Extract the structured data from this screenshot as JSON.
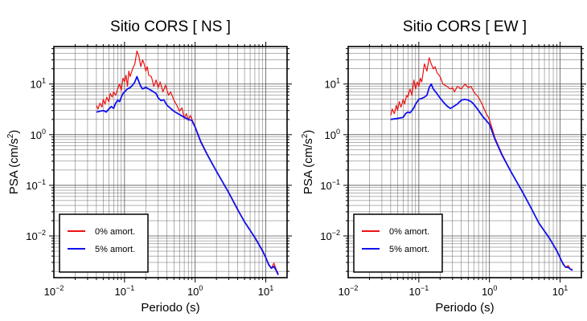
{
  "colors": {
    "series_0": "#ee1111",
    "series_5": "#1111ee",
    "grid": "#555555",
    "axis": "#000000"
  },
  "chart_data": [
    {
      "type": "line",
      "title": "Sitio CORS [ NS ]",
      "xlabel": "Periodo (s)",
      "ylabel_main": "PSA (cm/s",
      "ylabel_sup": "2",
      "ylabel_tail": ")",
      "xscale": "log",
      "yscale": "log",
      "xlim": [
        0.01,
        20
      ],
      "ylim": [
        0.0015,
        55
      ],
      "grid": true,
      "legend_position": "bottom-left",
      "x_ticks": [
        {
          "base": "10",
          "exp": "−2",
          "value": 0.01
        },
        {
          "base": "10",
          "exp": "−1",
          "value": 0.1
        },
        {
          "base": "10",
          "exp": "0",
          "value": 1
        },
        {
          "base": "10",
          "exp": "1",
          "value": 10
        }
      ],
      "y_ticks": [
        {
          "base": "10",
          "exp": "−2",
          "value": 0.01
        },
        {
          "base": "10",
          "exp": "−1",
          "value": 0.1
        },
        {
          "base": "10",
          "exp": "0",
          "value": 1
        },
        {
          "base": "10",
          "exp": "1",
          "value": 10
        }
      ],
      "series": [
        {
          "name": "0% amort.",
          "color": "#ee1111",
          "x": [
            0.04,
            0.042,
            0.045,
            0.048,
            0.05,
            0.053,
            0.056,
            0.06,
            0.063,
            0.067,
            0.07,
            0.075,
            0.08,
            0.085,
            0.09,
            0.095,
            0.1,
            0.105,
            0.11,
            0.115,
            0.12,
            0.13,
            0.14,
            0.15,
            0.16,
            0.17,
            0.18,
            0.19,
            0.2,
            0.21,
            0.22,
            0.24,
            0.26,
            0.28,
            0.3,
            0.32,
            0.35,
            0.38,
            0.42,
            0.45,
            0.5,
            0.55,
            0.6,
            0.65,
            0.7,
            0.75,
            0.8,
            0.85,
            0.9,
            1.0,
            1.2,
            1.5,
            2,
            3,
            4,
            5,
            7,
            9,
            10,
            11,
            12,
            13,
            14,
            15
          ],
          "y": [
            3.8,
            3.2,
            4.2,
            3.5,
            5.0,
            4.0,
            5.5,
            4.5,
            6.5,
            5.5,
            7.0,
            6.0,
            8.0,
            10.0,
            7.5,
            13.0,
            11.0,
            15.0,
            9.0,
            18.0,
            14.0,
            20.0,
            25.0,
            45.0,
            35.0,
            22.0,
            30.0,
            25.0,
            18.0,
            22.0,
            15.0,
            14.0,
            9.0,
            12.0,
            8.5,
            11.0,
            7.0,
            9.5,
            6.0,
            7.0,
            4.8,
            3.8,
            2.9,
            3.4,
            2.1,
            2.6,
            1.9,
            2.4,
            2.0,
            1.45,
            0.75,
            0.4,
            0.19,
            0.072,
            0.034,
            0.019,
            0.0095,
            0.0052,
            0.0038,
            0.0028,
            0.0023,
            0.0029,
            0.0022,
            0.0018
          ]
        },
        {
          "name": "5% amort.",
          "color": "#1111ee",
          "x": [
            0.04,
            0.045,
            0.05,
            0.055,
            0.06,
            0.065,
            0.07,
            0.075,
            0.08,
            0.085,
            0.09,
            0.095,
            0.1,
            0.11,
            0.12,
            0.13,
            0.14,
            0.15,
            0.16,
            0.17,
            0.18,
            0.2,
            0.22,
            0.25,
            0.28,
            0.3,
            0.33,
            0.36,
            0.4,
            0.45,
            0.5,
            0.6,
            0.7,
            0.8,
            0.9,
            1.0,
            1.2,
            1.5,
            2,
            3,
            4,
            5,
            7,
            9,
            10,
            11,
            12,
            13,
            14,
            15
          ],
          "y": [
            2.8,
            2.9,
            3.0,
            2.8,
            3.2,
            3.6,
            3.3,
            4.2,
            4.8,
            4.5,
            5.5,
            6.5,
            7.0,
            8.0,
            8.5,
            9.5,
            11.0,
            14.0,
            11.0,
            9.0,
            8.0,
            8.6,
            8.0,
            7.2,
            6.5,
            5.3,
            4.7,
            4.9,
            3.8,
            3.3,
            2.9,
            2.5,
            2.2,
            2.0,
            1.9,
            1.4,
            0.72,
            0.39,
            0.19,
            0.071,
            0.033,
            0.019,
            0.0093,
            0.0051,
            0.0037,
            0.0027,
            0.0023,
            0.0025,
            0.0021,
            0.0017
          ]
        }
      ]
    },
    {
      "type": "line",
      "title": "Sitio CORS [ EW ]",
      "xlabel": "Periodo (s)",
      "ylabel_main": "PSA (cm/s",
      "ylabel_sup": "2",
      "ylabel_tail": ")",
      "xscale": "log",
      "yscale": "log",
      "xlim": [
        0.01,
        20
      ],
      "ylim": [
        0.0015,
        55
      ],
      "grid": true,
      "legend_position": "bottom-left",
      "x_ticks": [
        {
          "base": "10",
          "exp": "−2",
          "value": 0.01
        },
        {
          "base": "10",
          "exp": "−1",
          "value": 0.1
        },
        {
          "base": "10",
          "exp": "0",
          "value": 1
        },
        {
          "base": "10",
          "exp": "1",
          "value": 10
        }
      ],
      "y_ticks": [
        {
          "base": "10",
          "exp": "−2",
          "value": 0.01
        },
        {
          "base": "10",
          "exp": "−1",
          "value": 0.1
        },
        {
          "base": "10",
          "exp": "0",
          "value": 1
        },
        {
          "base": "10",
          "exp": "1",
          "value": 10
        }
      ],
      "series": [
        {
          "name": "0% amort.",
          "color": "#ee1111",
          "x": [
            0.04,
            0.042,
            0.045,
            0.048,
            0.05,
            0.053,
            0.056,
            0.06,
            0.063,
            0.067,
            0.07,
            0.075,
            0.08,
            0.085,
            0.09,
            0.095,
            0.1,
            0.105,
            0.11,
            0.12,
            0.13,
            0.14,
            0.15,
            0.16,
            0.17,
            0.18,
            0.2,
            0.22,
            0.25,
            0.28,
            0.3,
            0.32,
            0.35,
            0.4,
            0.45,
            0.5,
            0.55,
            0.6,
            0.7,
            0.8,
            0.9,
            1.0,
            1.2,
            1.5,
            2,
            3,
            4,
            5,
            7,
            9,
            10,
            11,
            12,
            13,
            14,
            15
          ],
          "y": [
            2.4,
            3.2,
            2.6,
            3.8,
            3.0,
            4.5,
            3.5,
            5.0,
            4.0,
            6.0,
            5.5,
            8.0,
            6.0,
            12.0,
            8.0,
            11.0,
            9.0,
            13.0,
            11.0,
            25.0,
            18.0,
            33.0,
            25.0,
            20.0,
            22.0,
            17.0,
            14.0,
            10.0,
            9.0,
            8.0,
            8.5,
            7.0,
            9.0,
            8.0,
            10.0,
            8.5,
            9.0,
            7.0,
            5.5,
            3.8,
            2.6,
            2.0,
            0.85,
            0.42,
            0.19,
            0.07,
            0.033,
            0.018,
            0.0092,
            0.005,
            0.0037,
            0.0029,
            0.0024,
            0.0026,
            0.0022,
            0.0022
          ]
        },
        {
          "name": "5% amort.",
          "color": "#1111ee",
          "x": [
            0.04,
            0.05,
            0.06,
            0.065,
            0.07,
            0.075,
            0.08,
            0.085,
            0.09,
            0.095,
            0.1,
            0.11,
            0.12,
            0.13,
            0.14,
            0.15,
            0.16,
            0.18,
            0.2,
            0.22,
            0.25,
            0.28,
            0.3,
            0.35,
            0.4,
            0.45,
            0.5,
            0.55,
            0.6,
            0.7,
            0.8,
            0.9,
            1.0,
            1.2,
            1.5,
            2,
            3,
            4,
            5,
            7,
            9,
            10,
            11,
            12,
            13,
            14,
            15
          ],
          "y": [
            2.0,
            2.1,
            2.2,
            2.6,
            2.8,
            2.7,
            3.0,
            3.4,
            4.0,
            4.5,
            5.0,
            5.2,
            5.5,
            6.0,
            8.5,
            10.0,
            8.0,
            6.5,
            5.3,
            4.5,
            3.7,
            3.3,
            3.5,
            4.0,
            4.8,
            5.0,
            4.8,
            4.5,
            4.0,
            3.0,
            2.3,
            1.9,
            1.6,
            0.8,
            0.4,
            0.19,
            0.07,
            0.033,
            0.018,
            0.0092,
            0.0051,
            0.0037,
            0.0028,
            0.0024,
            0.0024,
            0.0022,
            0.0021
          ]
        }
      ]
    }
  ]
}
